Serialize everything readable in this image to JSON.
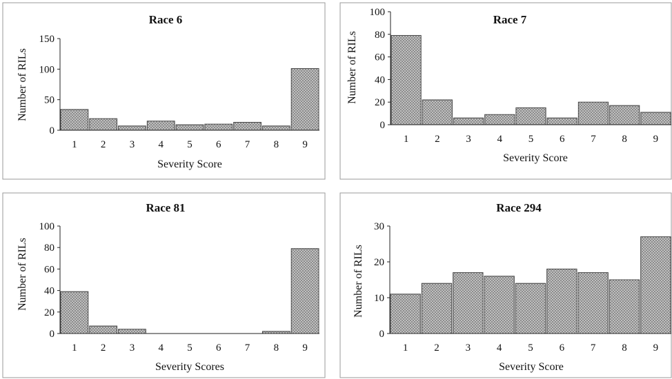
{
  "chart_data": [
    {
      "type": "bar",
      "title": "Race 6",
      "xlabel": "Severity Score",
      "ylabel": "Number of RILs",
      "categories": [
        "1",
        "2",
        "3",
        "4",
        "5",
        "6",
        "7",
        "8",
        "9"
      ],
      "values": [
        34,
        19,
        7,
        15,
        9,
        10,
        13,
        7,
        101
      ],
      "ylim": [
        0,
        150
      ],
      "yticks": [
        "0",
        "50",
        "100",
        "150"
      ],
      "grid": false,
      "legend": "none"
    },
    {
      "type": "bar",
      "title": "Race 7",
      "xlabel": "Severity Score",
      "ylabel": "Number of RILs",
      "categories": [
        "1",
        "2",
        "3",
        "4",
        "5",
        "6",
        "7",
        "8",
        "9"
      ],
      "values": [
        79,
        22,
        6,
        9,
        15,
        6,
        20,
        17,
        11
      ],
      "ylim": [
        0,
        100
      ],
      "yticks": [
        "0",
        "20",
        "40",
        "60",
        "80",
        "100"
      ],
      "grid": false,
      "legend": "none"
    },
    {
      "type": "bar",
      "title": "Race 81",
      "xlabel": "Severity Scores",
      "ylabel": "Number of RILs",
      "categories": [
        "1",
        "2",
        "3",
        "4",
        "5",
        "6",
        "7",
        "8",
        "9"
      ],
      "values": [
        39,
        7,
        4,
        0,
        0,
        0,
        0,
        2,
        79
      ],
      "ylim": [
        0,
        100
      ],
      "yticks": [
        "0",
        "20",
        "40",
        "60",
        "80",
        "100"
      ],
      "grid": false,
      "legend": "none"
    },
    {
      "type": "bar",
      "title": "Race 294",
      "xlabel": "Severity Score",
      "ylabel": "Number of RILs",
      "categories": [
        "1",
        "2",
        "3",
        "4",
        "5",
        "6",
        "7",
        "8",
        "9"
      ],
      "values": [
        11,
        14,
        17,
        16,
        14,
        18,
        17,
        15,
        27
      ],
      "ylim": [
        0,
        30
      ],
      "yticks": [
        "0",
        "10",
        "20",
        "30"
      ],
      "grid": false,
      "legend": "none"
    }
  ],
  "colors": {
    "bar_fill": "#8c8c8c",
    "bar_dot": "#ffffff",
    "bar_stroke": "#444444",
    "axis": "#222222",
    "frame": "#9a9a9a"
  }
}
